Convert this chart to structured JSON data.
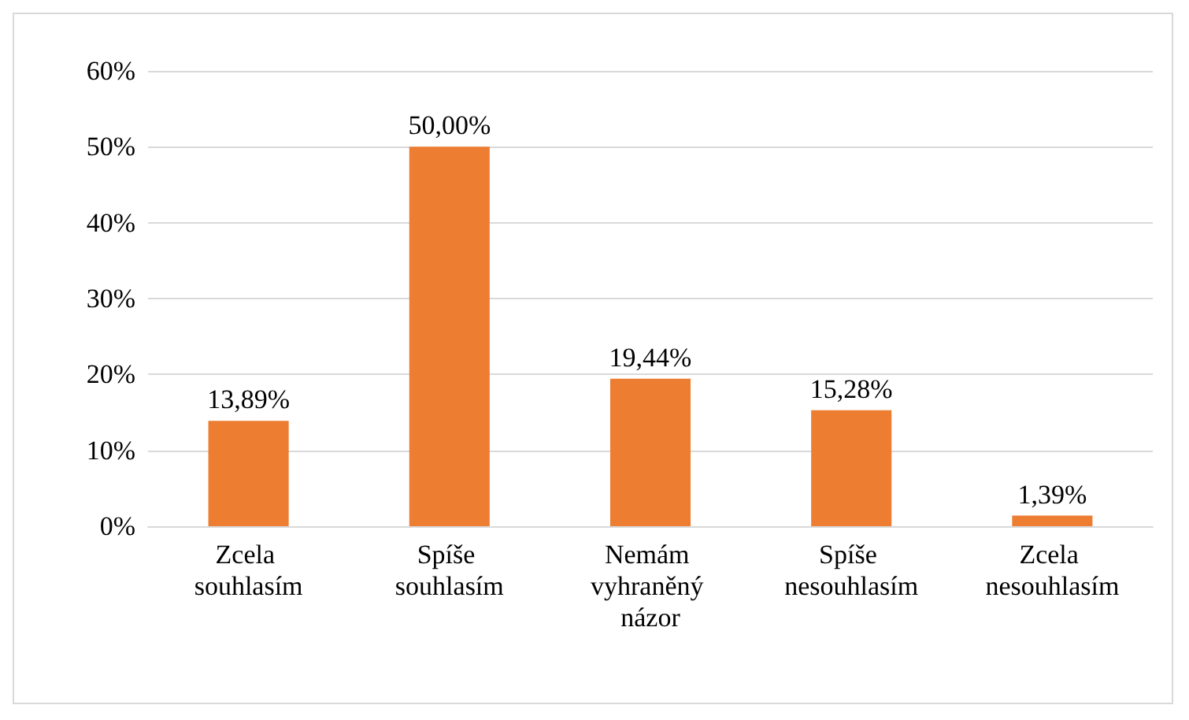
{
  "chart_data": {
    "type": "bar",
    "categories": [
      "Zcela souhlasím",
      "Spíše souhlasím",
      "Nemám vyhraněný názor",
      "Spíše nesouhlasím",
      "Zcela nesouhlasím"
    ],
    "values": [
      13.89,
      50,
      19.44,
      15.28,
      1.39
    ],
    "value_labels": [
      "13,89%",
      "50,00%",
      "19,44%",
      "15,28%",
      "1,39%"
    ],
    "color": "#ed7d31",
    "ylim": [
      0,
      60
    ],
    "yticks": [
      {
        "value": 0,
        "label": "0%"
      },
      {
        "value": 10,
        "label": "10%"
      },
      {
        "value": 20,
        "label": "20%"
      },
      {
        "value": 30,
        "label": "30%"
      },
      {
        "value": 40,
        "label": "40%"
      },
      {
        "value": 50,
        "label": "50%"
      },
      {
        "value": 60,
        "label": "60%"
      }
    ],
    "grid": "y"
  }
}
